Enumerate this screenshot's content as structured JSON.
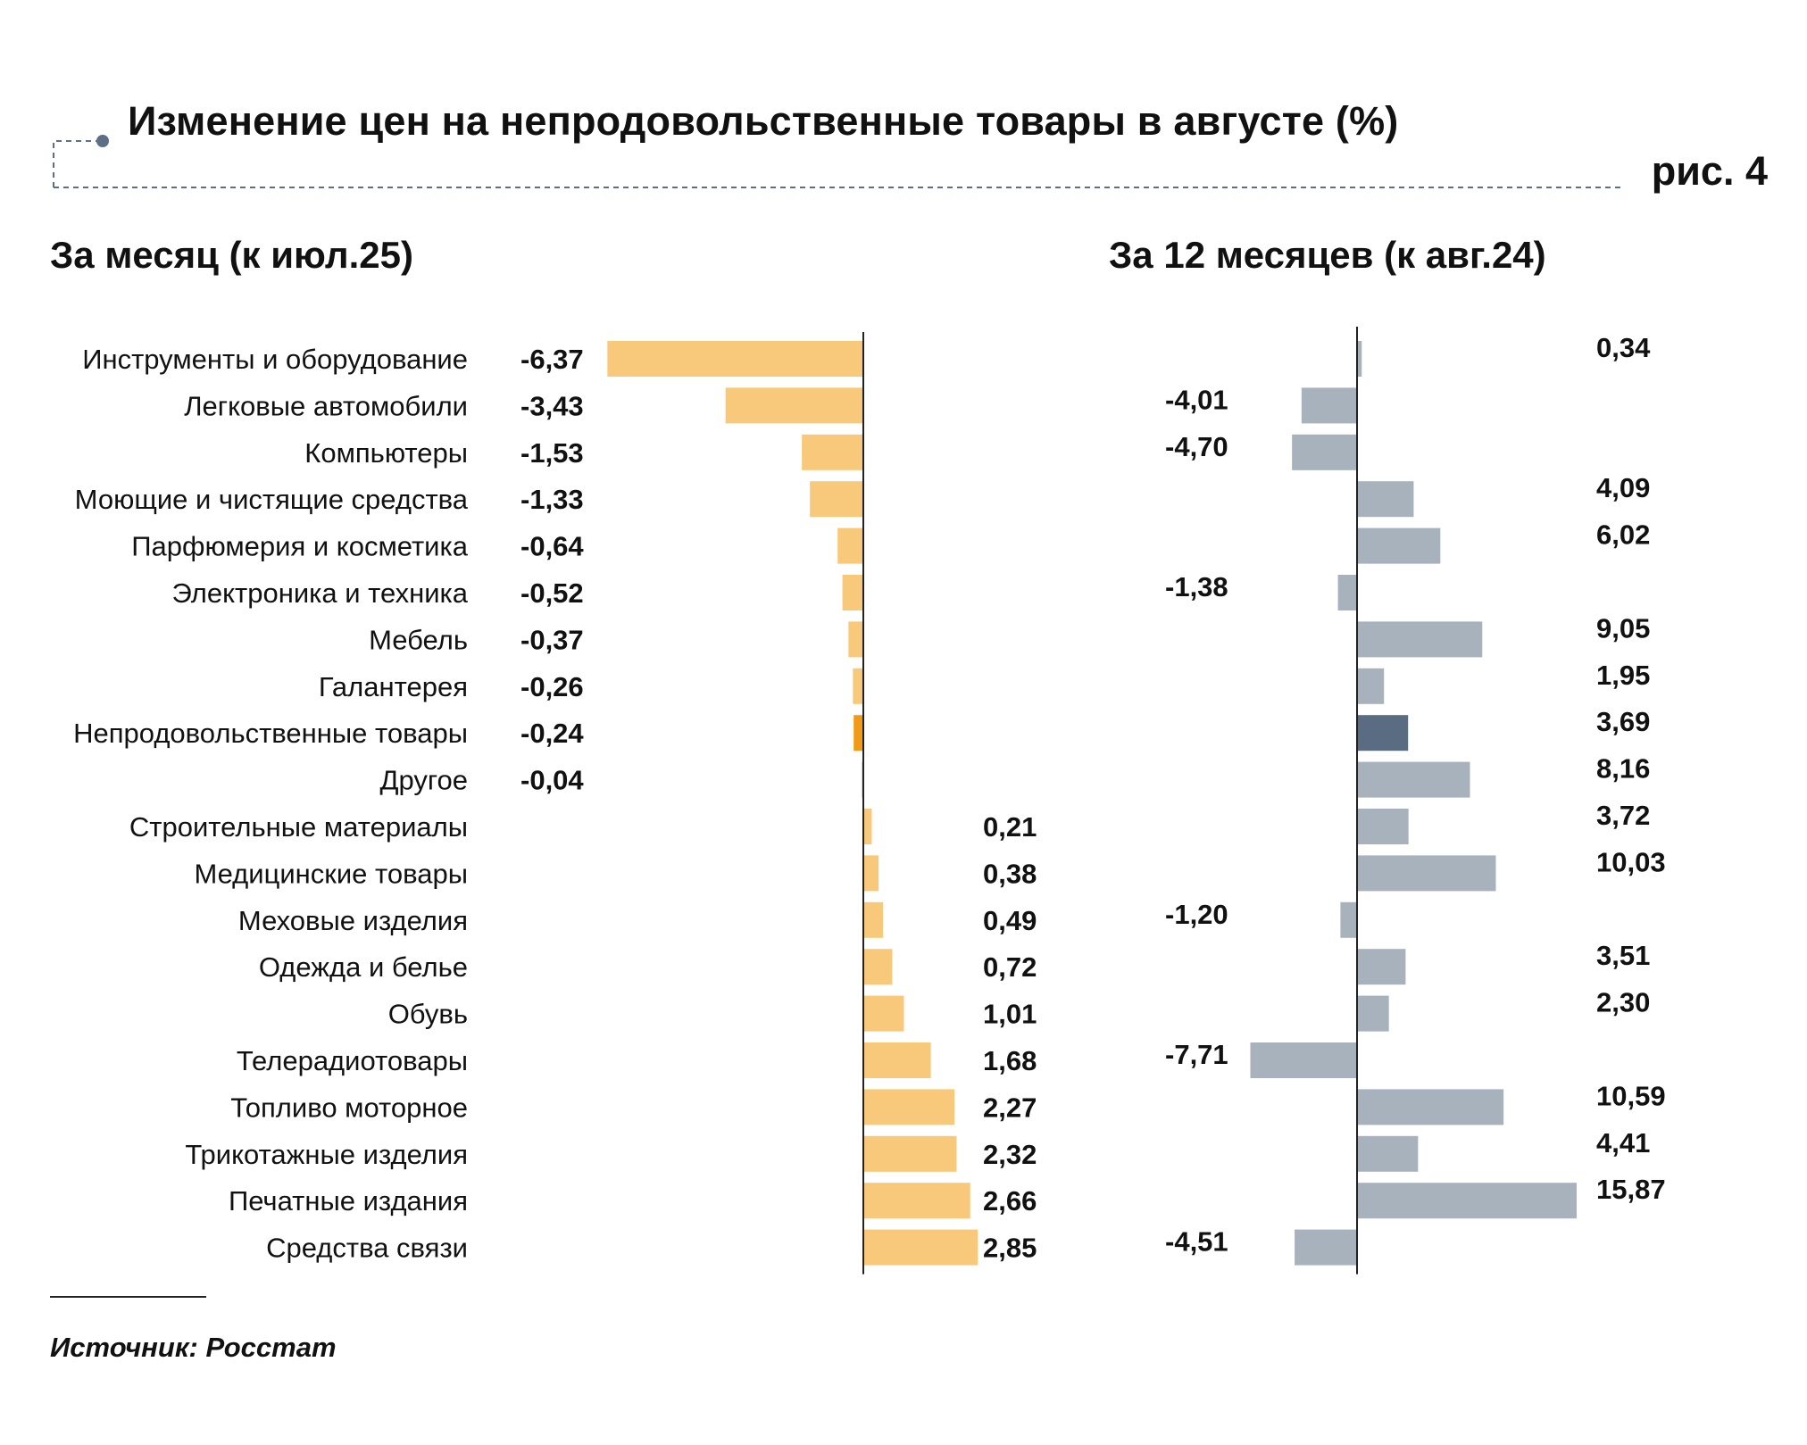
{
  "header": {
    "title": "Изменение цен на непродовольственные товары в августе (%)",
    "figure_label": "рис. 4"
  },
  "colors": {
    "monthly_bar": "#F8C97A",
    "monthly_highlight": "#F09A18",
    "annual_bar": "#A8B2BD",
    "annual_highlight": "#5A6C82",
    "axis": "#222222",
    "deco_line": "#5B6F86"
  },
  "chart_data": {
    "type": "bar",
    "orientation": "horizontal",
    "categories": [
      "Инструменты и оборудование",
      "Легковые автомобили",
      "Компьютеры",
      "Моющие и чистящие средства",
      "Парфюмерия и косметика",
      "Электроника и техника",
      "Мебель",
      "Галантерея",
      "Непродовольственные товары",
      "Другое",
      "Строительные материалы",
      "Медицинские товары",
      "Меховые изделия",
      "Одежда и белье",
      "Обувь",
      "Телерадиотовары",
      "Топливо моторное",
      "Трикотажные изделия",
      "Печатные издания",
      "Средства связи"
    ],
    "highlight_category": "Непродовольственные товары",
    "series": [
      {
        "name": "За месяц (к июл.25)",
        "values": [
          -6.37,
          -3.43,
          -1.53,
          -1.33,
          -0.64,
          -0.52,
          -0.37,
          -0.26,
          -0.24,
          -0.04,
          0.21,
          0.38,
          0.49,
          0.72,
          1.01,
          1.68,
          2.27,
          2.32,
          2.66,
          2.85
        ],
        "labels": [
          "-6,37",
          "-3,43",
          "-1,53",
          "-1,33",
          "-0,64",
          "-0,52",
          "-0,37",
          "-0,26",
          "-0,24",
          "-0,04",
          "0,21",
          "0,38",
          "0,49",
          "0,72",
          "1,01",
          "1,68",
          "2,27",
          "2,32",
          "2,66",
          "2,85"
        ]
      },
      {
        "name": "За 12 месяцев (к авг.24)",
        "values": [
          0.34,
          -4.01,
          -4.7,
          4.09,
          6.02,
          -1.38,
          9.05,
          1.95,
          3.69,
          8.16,
          3.72,
          10.03,
          -1.2,
          3.51,
          2.3,
          -7.71,
          10.59,
          4.41,
          15.87,
          -4.51
        ],
        "labels": [
          "0,34",
          "-4,01",
          "-4,70",
          "4,09",
          "6,02",
          "-1,38",
          "9,05",
          "1,95",
          "3,69",
          "8,16",
          "3,72",
          "10,03",
          "-1,20",
          "3,51",
          "2,30",
          "-7,71",
          "10,59",
          "4,41",
          "15,87",
          "-4,51"
        ]
      }
    ],
    "xlabel": "",
    "ylabel": "",
    "grid": false,
    "legend": "none"
  },
  "panels": {
    "left_title": "За месяц (к июл.25)",
    "right_title": "За 12 месяцев (к авг.24)"
  },
  "footer": {
    "source": "Источник: Росстат"
  }
}
